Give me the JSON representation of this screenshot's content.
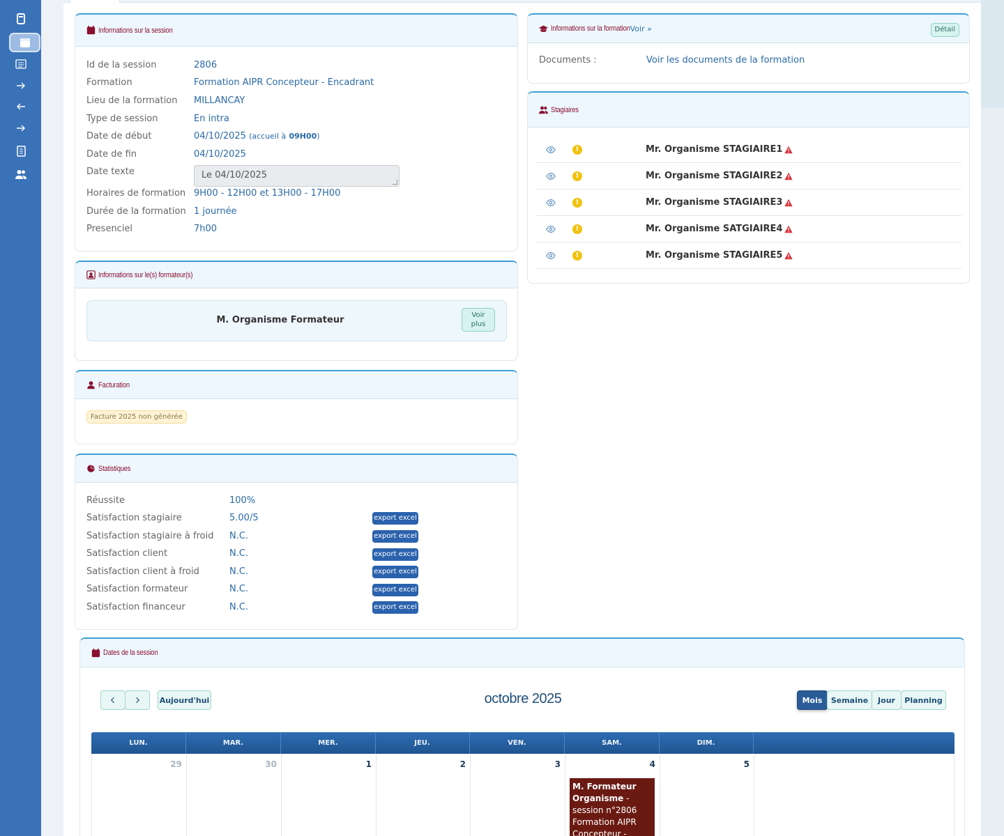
{
  "session": {
    "title": "Informations sur la session",
    "rows": [
      {
        "label": "Id de la session",
        "value": "2806"
      },
      {
        "label": "Formation",
        "value": "Formation AIPR Concepteur - Encadrant"
      },
      {
        "label": "Lieu de la formation",
        "value": "MILLANCAY"
      },
      {
        "label": "Type de session",
        "value": "En intra"
      },
      {
        "label": "Date de début",
        "value": "04/10/2025",
        "extra_prefix": "(accueil à",
        "extra_time": "09H00",
        "extra_suffix": ")"
      },
      {
        "label": "Date de fin",
        "value": "04/10/2025"
      },
      {
        "label": "Date texte",
        "value": "Le 04/10/2025"
      },
      {
        "label": "Horaires de formation",
        "value": "9H00 - 12H00 et 13H00 - 17H00"
      },
      {
        "label": "Durée de la formation",
        "value": "1 journée"
      },
      {
        "label": "Presenciel",
        "value": "7h00"
      }
    ]
  },
  "trainers": {
    "title": "Informations sur le(s) formateur(s)",
    "name": "M. Organisme Formateur",
    "more_l1": "Voir",
    "more_l2": "plus"
  },
  "billing": {
    "title": "Facturation",
    "badge": "Facture 2025 non générée"
  },
  "stats": {
    "title": "Statistiques",
    "rows": [
      {
        "label": "Réussite",
        "value": "100%"
      },
      {
        "label": "Satisfaction stagiaire",
        "value": "5.00/5",
        "action": "export excel"
      },
      {
        "label": "Satisfaction stagiaire à froid",
        "value": "N.C.",
        "action": "export excel"
      },
      {
        "label": "Satisfaction client",
        "value": "N.C.",
        "action": "export excel"
      },
      {
        "label": "Satisfaction client à froid",
        "value": "N.C.",
        "action": "export excel"
      },
      {
        "label": "Satisfaction formateur",
        "value": "N.C.",
        "action": "export excel"
      },
      {
        "label": "Satisfaction financeur",
        "value": "N.C.",
        "action": "export excel"
      }
    ]
  },
  "training": {
    "title": "Informations sur la formation",
    "link": "Voir »",
    "detail": "Détail",
    "doc_label": "Documents :",
    "doc_link": "Voir les documents de la formation"
  },
  "trainees": {
    "title": "Stagiaires",
    "items": [
      {
        "name": "Mr. Organisme STAGIAIRE1"
      },
      {
        "name": "Mr. Organisme STAGIAIRE2"
      },
      {
        "name": "Mr. Organisme STAGIAIRE3"
      },
      {
        "name": "Mr. Organisme SATGIAIRE4"
      },
      {
        "name": "Mr. Organisme STAGIAIRE5"
      }
    ]
  },
  "calendar": {
    "title": "Dates de la session",
    "month": "octobre 2025",
    "prev": "‹",
    "next": "›",
    "today": "Aujourd'hui",
    "views": [
      "Mois",
      "Semaine",
      "Jour",
      "Planning"
    ],
    "active_view": "Mois",
    "weekdays": [
      "LUN.",
      "MAR.",
      "MER.",
      "JEU.",
      "VEN.",
      "SAM.",
      "DIM."
    ],
    "days": [
      "29",
      "30",
      "1",
      "2",
      "3",
      "4",
      "5"
    ],
    "muted_days": [
      "29",
      "30"
    ],
    "event": {
      "title": "M. Formateur Organisme",
      "text1": " - session n°2806",
      "text2": "Formation AIPR",
      "text3": "Concepteur -"
    }
  },
  "colors": {
    "sidebar": "#3a72b8",
    "accent": "#3d9fd6",
    "title": "#8a1030",
    "link": "#2b6aa6",
    "event": "#6b1a12"
  }
}
